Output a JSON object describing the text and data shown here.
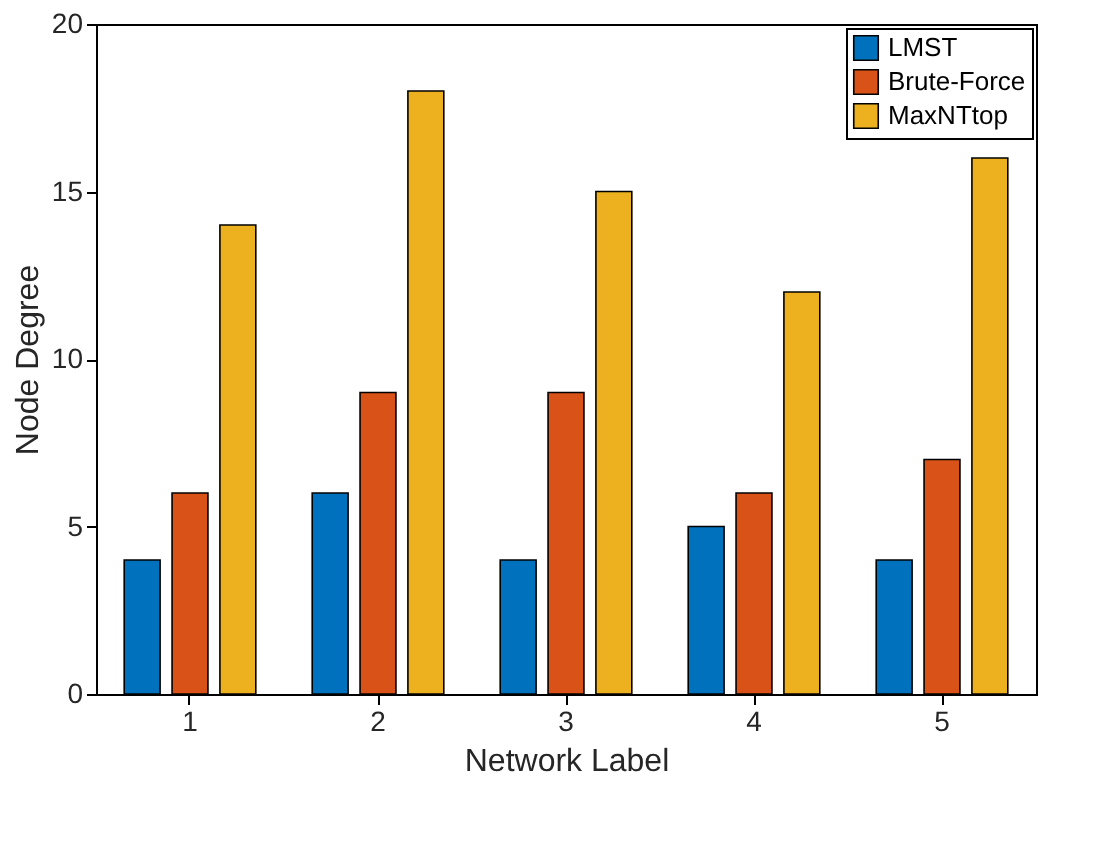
{
  "chart_data": {
    "type": "bar",
    "xlabel": "Network Label",
    "ylabel": "Node Degree",
    "categories": [
      "1",
      "2",
      "3",
      "4",
      "5"
    ],
    "series": [
      {
        "name": "LMST",
        "color": "#0072bd",
        "values": [
          4,
          6,
          4,
          5,
          4
        ]
      },
      {
        "name": "Brute-Force",
        "color": "#d95319",
        "values": [
          6,
          9,
          9,
          6,
          7
        ]
      },
      {
        "name": "MaxNTtop",
        "color": "#edb120",
        "values": [
          14,
          18,
          15,
          12,
          16
        ]
      }
    ],
    "ylim": [
      0,
      20
    ],
    "yticks": [
      0,
      5,
      10,
      15,
      20
    ],
    "grid": false,
    "legend": "top right"
  }
}
